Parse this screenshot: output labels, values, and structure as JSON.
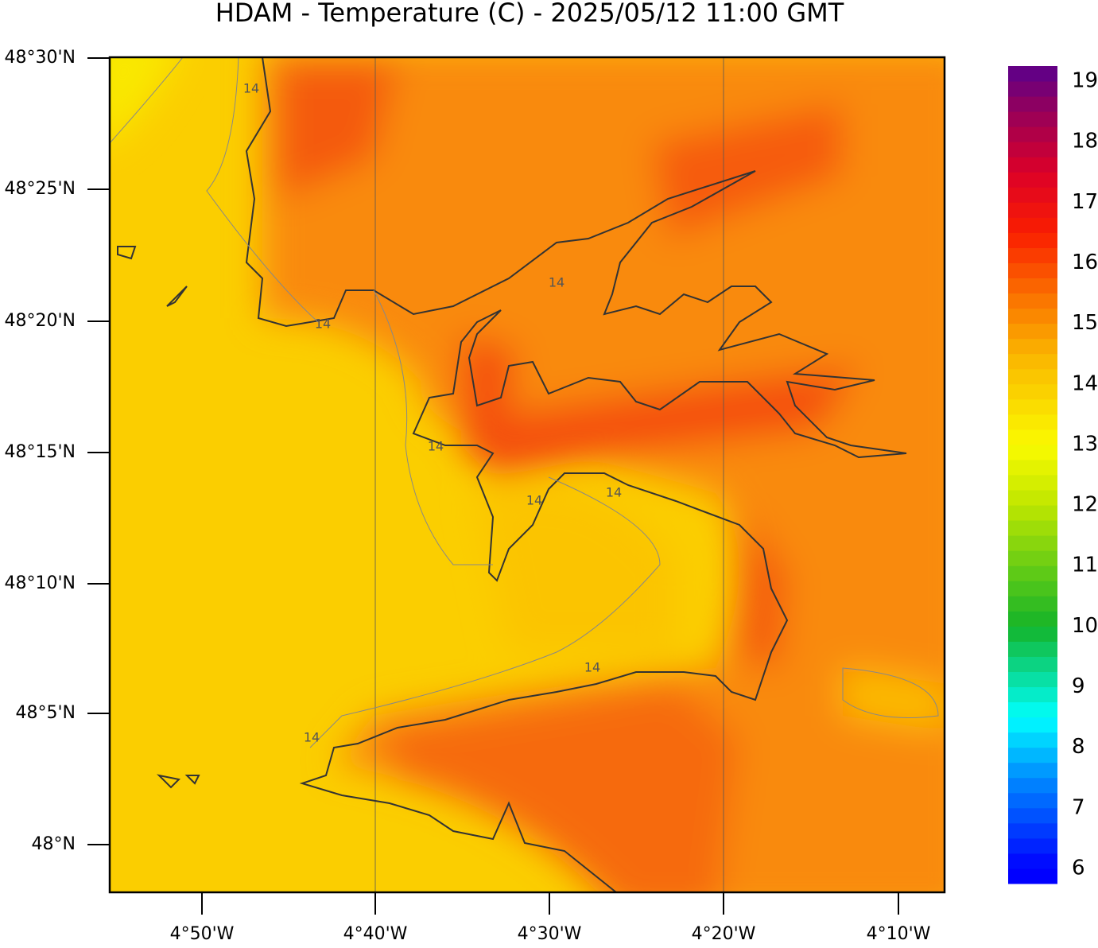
{
  "title": "HDAM - Temperature (C)  -  2025/05/12  11:00 GMT",
  "lat_labels": [
    "48°30'N",
    "48°25'N",
    "48°20'N",
    "48°15'N",
    "48°10'N",
    "48°5'N",
    "48°N"
  ],
  "lon_labels": [
    "4°50'W",
    "4°40'W",
    "4°30'W",
    "4°20'W",
    "4°10'W"
  ],
  "colorbar": {
    "range": [
      5.75,
      19.25
    ],
    "ticks": [
      6,
      7,
      8,
      9,
      10,
      11,
      12,
      13,
      14,
      15,
      16,
      17,
      18,
      19
    ]
  },
  "contour_labels": [
    "14",
    "14",
    "14",
    "14",
    "14",
    "14",
    "14",
    "14"
  ]
}
